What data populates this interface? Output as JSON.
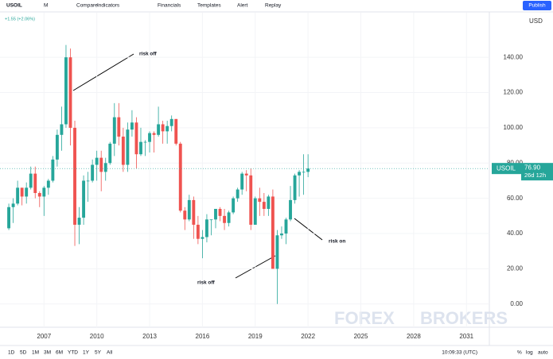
{
  "toolbar": {
    "symbol": "USOIL",
    "interval": "M",
    "items": [
      "Compare",
      "Indicators",
      "Financials",
      "Templates",
      "Alert",
      "Replay"
    ],
    "publish": "Publish"
  },
  "chart_data": {
    "type": "candlestick",
    "change_label": "+1.55 (+2.06%)",
    "currency": "USD",
    "x": [
      2005,
      2005.25,
      2005.5,
      2005.75,
      2006,
      2006.25,
      2006.5,
      2006.75,
      2007,
      2007.25,
      2007.5,
      2007.75,
      2008,
      2008.25,
      2008.5,
      2008.75,
      2009,
      2009.25,
      2009.5,
      2009.75,
      2010,
      2010.25,
      2010.5,
      2010.75,
      2011,
      2011.25,
      2011.5,
      2011.75,
      2012,
      2012.25,
      2012.5,
      2012.75,
      2013,
      2013.25,
      2013.5,
      2013.75,
      2014,
      2014.25,
      2014.5,
      2014.75,
      2015,
      2015.25,
      2015.5,
      2015.75,
      2016,
      2016.25,
      2016.5,
      2016.75,
      2017,
      2017.25,
      2017.5,
      2017.75,
      2018,
      2018.25,
      2018.5,
      2018.75,
      2019,
      2019.25,
      2019.5,
      2019.75,
      2020,
      2020.25,
      2020.5,
      2020.75,
      2021,
      2021.25,
      2021.5,
      2021.75,
      2022
    ],
    "series": [
      {
        "name": "USOIL",
        "up_color": "#26a69a",
        "down_color": "#ef5350",
        "open": [
          43,
          55,
          57,
          66,
          61,
          66,
          74,
          63,
          61,
          66,
          70,
          82,
          96,
          102,
          140,
          100,
          45,
          49,
          70,
          70,
          79,
          83,
          75,
          80,
          91,
          106,
          95,
          79,
          99,
          103,
          85,
          92,
          92,
          97,
          96,
          102,
          98,
          101,
          105,
          91,
          53,
          48,
          59,
          45,
          37,
          38,
          48,
          48,
          54,
          50,
          46,
          52,
          60,
          65,
          74,
          73,
          45,
          60,
          58,
          54,
          61,
          20,
          39,
          40,
          48,
          59,
          73,
          75,
          75
        ],
        "high": [
          57,
          60,
          70,
          66,
          69,
          78,
          78,
          64,
          67,
          71,
          84,
          99,
          112,
          147,
          145,
          104,
          55,
          73,
          75,
          82,
          87,
          87,
          83,
          92,
          114,
          114,
          100,
          103,
          110,
          106,
          100,
          93,
          98,
          98,
          112,
          104,
          104,
          107,
          105,
          92,
          55,
          62,
          61,
          50,
          42,
          51,
          48,
          54,
          55,
          54,
          53,
          61,
          66,
          75,
          76,
          77,
          61,
          66,
          63,
          62,
          65,
          42,
          44,
          49,
          67,
          74,
          76,
          85,
          85
        ],
        "low": [
          42,
          46,
          56,
          56,
          57,
          65,
          60,
          55,
          50,
          62,
          69,
          78,
          87,
          100,
          90,
          33,
          34,
          45,
          58,
          69,
          70,
          64,
          70,
          79,
          84,
          90,
          75,
          75,
          95,
          77,
          84,
          84,
          86,
          86,
          95,
          91,
          91,
          98,
          90,
          52,
          42,
          47,
          37,
          34,
          26,
          35,
          39,
          43,
          47,
          42,
          44,
          51,
          58,
          62,
          64,
          42,
          45,
          50,
          50,
          50,
          20,
          0,
          37,
          34,
          47,
          57,
          61,
          62,
          72
        ],
        "close": [
          55,
          57,
          66,
          61,
          66,
          74,
          63,
          61,
          66,
          70,
          82,
          96,
          102,
          140,
          100,
          45,
          49,
          70,
          70,
          79,
          83,
          75,
          80,
          91,
          106,
          95,
          79,
          99,
          103,
          85,
          92,
          92,
          97,
          96,
          102,
          98,
          101,
          105,
          91,
          53,
          48,
          59,
          45,
          37,
          38,
          48,
          48,
          54,
          50,
          46,
          52,
          60,
          65,
          74,
          73,
          45,
          60,
          58,
          54,
          61,
          20,
          39,
          40,
          48,
          59,
          73,
          75,
          75,
          76.9
        ]
      }
    ],
    "last_price": {
      "value": 76.9,
      "label": "76.90"
    },
    "countdown": "26d 12h",
    "xlim": [
      2004.5,
      2032.3
    ],
    "xticks": [
      2007,
      2010,
      2013,
      2016,
      2019,
      2022,
      2025,
      2028,
      2031
    ],
    "ylim": [
      -10,
      159
    ],
    "yticks": [
      {
        "value": 0,
        "label": "0.00"
      },
      {
        "value": 20,
        "label": "20.00"
      },
      {
        "value": 40,
        "label": "40.00"
      },
      {
        "value": 60,
        "label": "60.00"
      },
      {
        "value": 80,
        "label": "80.00"
      },
      {
        "value": 100,
        "label": "100.00"
      },
      {
        "value": 120,
        "label": "120.00"
      },
      {
        "value": 140,
        "label": "140.00"
      }
    ],
    "grid": true,
    "annotations": [
      "risk off",
      "risk on",
      "risk off"
    ]
  },
  "watermark": [
    "FOREX",
    "BROKERS"
  ],
  "bottom_bar": {
    "ranges": [
      "1D",
      "5D",
      "1M",
      "3M",
      "6M",
      "YTD",
      "1Y",
      "5Y",
      "All"
    ],
    "time": "10:09:33 (UTC)",
    "scale_options": [
      "%",
      "log",
      "auto"
    ]
  }
}
